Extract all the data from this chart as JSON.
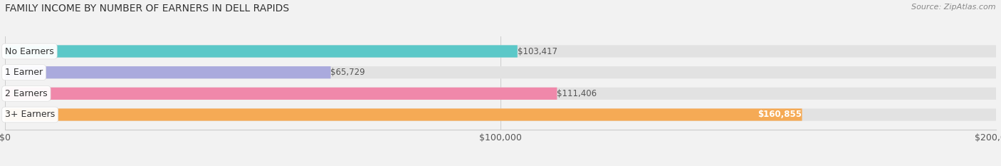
{
  "title": "FAMILY INCOME BY NUMBER OF EARNERS IN DELL RAPIDS",
  "source": "Source: ZipAtlas.com",
  "categories": [
    "No Earners",
    "1 Earner",
    "2 Earners",
    "3+ Earners"
  ],
  "values": [
    103417,
    65729,
    111406,
    160855
  ],
  "bar_colors": [
    "#5bc8c8",
    "#aaaadd",
    "#f088aa",
    "#f5aa55"
  ],
  "xlim": [
    0,
    200000
  ],
  "xticks": [
    0,
    100000,
    200000
  ],
  "xtick_labels": [
    "$0",
    "$100,000",
    "$200,000"
  ],
  "background_color": "#f2f2f2",
  "bar_bg_color": "#e2e2e2",
  "title_fontsize": 10,
  "source_fontsize": 8,
  "label_fontsize": 9,
  "tick_fontsize": 9,
  "bar_height": 0.58,
  "value_labels": [
    "$103,417",
    "$65,729",
    "$111,406",
    "$160,855"
  ],
  "value_label_inside": [
    false,
    false,
    false,
    true
  ]
}
